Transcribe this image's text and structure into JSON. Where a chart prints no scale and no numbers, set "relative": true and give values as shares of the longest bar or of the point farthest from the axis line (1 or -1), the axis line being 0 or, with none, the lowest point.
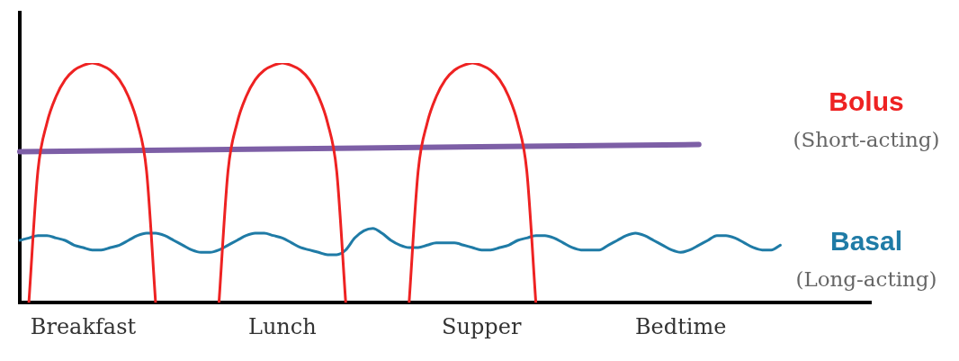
{
  "chart_data": {
    "type": "line",
    "relative": true,
    "marker": "none",
    "legend": "right",
    "categories": [
      null,
      null,
      null,
      null,
      null,
      null,
      null,
      "Breakfast",
      null,
      null,
      null,
      null,
      null,
      null,
      null,
      null,
      null,
      null,
      null,
      null,
      null,
      null,
      null,
      null,
      null,
      null,
      null,
      null,
      null,
      "Lunch",
      null,
      null,
      null,
      null,
      null,
      null,
      null,
      null,
      null,
      null,
      null,
      null,
      null,
      null,
      null,
      null,
      null,
      null,
      null,
      null,
      null,
      "Supper",
      null,
      null,
      null,
      null,
      null,
      null,
      null,
      null,
      null,
      null,
      null,
      null,
      null,
      null,
      null,
      null,
      null,
      null,
      null,
      null,
      null,
      "Bedtime",
      null,
      null,
      null,
      null,
      null,
      null,
      null,
      null,
      null,
      null,
      null,
      null,
      null,
      null,
      null,
      null,
      null,
      null,
      null,
      null,
      null
    ],
    "annotations": [
      "(Short-acting)",
      "(Long-acting)"
    ],
    "series": [
      {
        "name": "Bolus",
        "color": "#ee2222",
        "values": [
          null,
          0,
          0.55,
          0.75,
          0.86,
          0.93,
          0.97,
          0.99,
          1,
          0.99,
          0.97,
          0.93,
          0.86,
          0.75,
          0.55,
          0,
          null,
          null,
          null,
          null,
          null,
          null,
          0,
          0.55,
          0.75,
          0.86,
          0.93,
          0.97,
          0.99,
          1,
          0.99,
          0.97,
          0.93,
          0.86,
          0.75,
          0.55,
          0,
          null,
          null,
          null,
          null,
          null,
          null,
          0,
          0.55,
          0.75,
          0.86,
          0.93,
          0.97,
          0.99,
          1,
          0.99,
          0.97,
          0.93,
          0.86,
          0.75,
          0.55,
          0,
          null,
          null,
          null,
          null,
          null,
          null,
          null,
          null,
          null,
          null,
          null,
          null,
          null,
          null,
          null,
          null,
          null,
          null,
          null,
          null,
          null,
          null,
          null,
          null,
          null,
          null,
          null,
          null,
          null,
          null,
          null,
          null,
          null,
          null,
          null,
          null,
          null
        ]
      },
      {
        "color": "#7d5fa6",
        "values": [
          0.63,
          null,
          null,
          null,
          null,
          null,
          null,
          null,
          null,
          null,
          null,
          null,
          null,
          null,
          null,
          null,
          null,
          null,
          null,
          null,
          null,
          null,
          null,
          null,
          null,
          null,
          null,
          null,
          null,
          null,
          null,
          null,
          null,
          null,
          null,
          null,
          null,
          null,
          null,
          null,
          null,
          null,
          null,
          null,
          null,
          null,
          null,
          null,
          null,
          null,
          null,
          null,
          null,
          null,
          null,
          null,
          null,
          null,
          null,
          null,
          null,
          null,
          null,
          null,
          null,
          null,
          null,
          null,
          null,
          null,
          null,
          null,
          null,
          null,
          null,
          0.66,
          null,
          null,
          null,
          null,
          null,
          null,
          null,
          null,
          null,
          null,
          null,
          null,
          null,
          null,
          null,
          null,
          null,
          null,
          null
        ]
      },
      {
        "name": "Basal",
        "color": "#1f7ba6",
        "values": [
          0.26,
          0.27,
          0.28,
          0.28,
          0.27,
          0.26,
          0.24,
          0.23,
          0.22,
          0.22,
          0.23,
          0.24,
          0.26,
          0.28,
          0.29,
          0.29,
          0.28,
          0.26,
          0.24,
          0.22,
          0.21,
          0.21,
          0.22,
          0.24,
          0.26,
          0.28,
          0.29,
          0.29,
          0.28,
          0.27,
          0.25,
          0.23,
          0.22,
          0.21,
          0.2,
          0.2,
          0.22,
          0.27,
          0.3,
          0.31,
          0.29,
          0.26,
          0.24,
          0.23,
          0.23,
          0.24,
          0.25,
          0.25,
          0.25,
          0.24,
          0.23,
          0.22,
          0.22,
          0.23,
          0.24,
          0.26,
          0.27,
          0.28,
          0.28,
          0.27,
          0.25,
          0.23,
          0.22,
          0.22,
          0.22,
          0.24,
          0.26,
          0.28,
          0.29,
          0.28,
          0.26,
          0.24,
          0.22,
          0.21,
          0.22,
          0.24,
          0.26,
          0.28,
          0.28,
          0.27,
          0.25,
          0.23,
          0.22,
          0.22,
          0.24,
          null,
          null,
          null,
          null,
          null,
          null,
          null,
          null,
          null,
          null
        ]
      }
    ]
  }
}
